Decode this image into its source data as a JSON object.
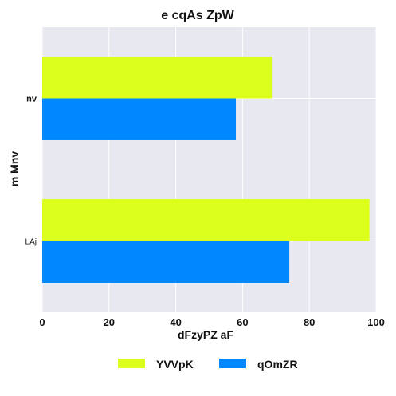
{
  "chart_data": {
    "type": "bar",
    "orientation": "horizontal",
    "title": "e cqAs ZpW",
    "xlabel": "dFzyPZ aF",
    "ylabel": "m  Mnv",
    "categories": [
      "nv",
      "LAj"
    ],
    "series": [
      {
        "name": "YVVpK",
        "color": "#dcff1c",
        "values": [
          69,
          98
        ]
      },
      {
        "name": "qOmZR",
        "color": "#0088ff",
        "values": [
          58,
          74
        ]
      }
    ],
    "xlim": [
      0,
      100
    ],
    "xticks": [
      "0",
      "20",
      "40",
      "60",
      "80",
      "100"
    ],
    "grid": true,
    "background": "#e8e8f0",
    "legend_position": "bottom"
  }
}
